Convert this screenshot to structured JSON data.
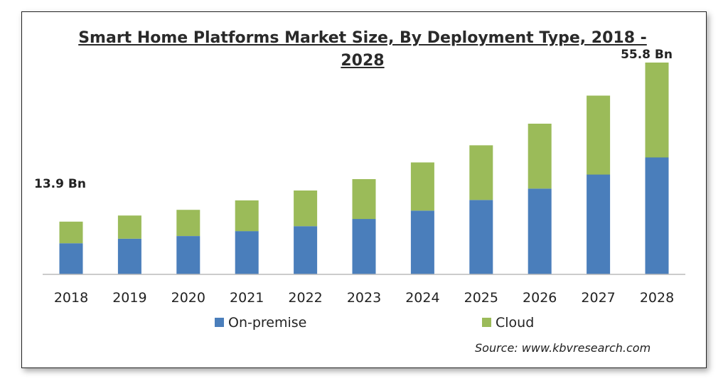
{
  "chart_data": {
    "type": "bar",
    "stacked": true,
    "title_line1": "Smart Home Platforms Market Size, By Deployment Type, 2018 -",
    "title_line2": "2028",
    "categories": [
      "2018",
      "2019",
      "2020",
      "2021",
      "2022",
      "2023",
      "2024",
      "2025",
      "2026",
      "2027",
      "2028"
    ],
    "series": [
      {
        "name": "On-premise",
        "color": "#4a7ebb",
        "values": [
          8.2,
          9.4,
          10.1,
          11.4,
          12.7,
          14.6,
          16.8,
          19.6,
          22.6,
          26.3,
          30.8
        ]
      },
      {
        "name": "Cloud",
        "color": "#9bbb59",
        "values": [
          5.7,
          6.1,
          6.9,
          8.1,
          9.4,
          10.5,
          12.7,
          14.4,
          17.1,
          20.8,
          25.0
        ]
      }
    ],
    "annotations": [
      {
        "category": "2018",
        "text": "13.9 Bn"
      },
      {
        "category": "2028",
        "text": "55.8 Bn"
      }
    ],
    "ylim": [
      0,
      56
    ],
    "grid": false,
    "legend": "bottom"
  },
  "source_text": "Source:  www.kbvresearch.com"
}
